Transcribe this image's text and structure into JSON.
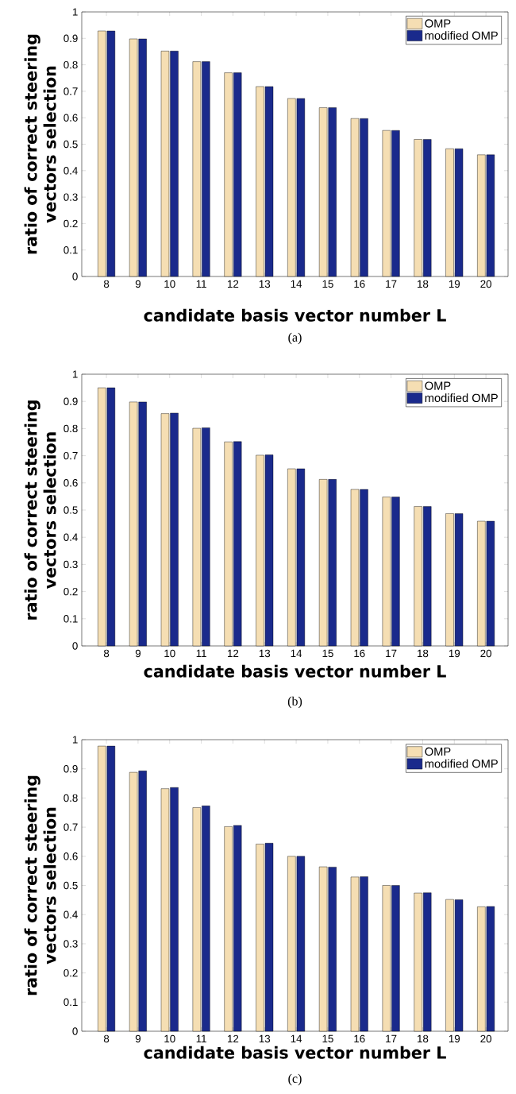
{
  "chart_data": [
    {
      "type": "bar",
      "categories": [
        "8",
        "9",
        "10",
        "11",
        "12",
        "13",
        "14",
        "15",
        "16",
        "17",
        "18",
        "19",
        "20"
      ],
      "series": [
        {
          "name": "OMP",
          "color": "#f5deb3",
          "values": [
            0.928,
            0.898,
            0.852,
            0.812,
            0.77,
            0.718,
            0.673,
            0.638,
            0.597,
            0.552,
            0.518,
            0.483,
            0.46
          ]
        },
        {
          "name": "modified OMP",
          "color": "#1a2a8c",
          "values": [
            0.928,
            0.898,
            0.852,
            0.812,
            0.77,
            0.718,
            0.673,
            0.638,
            0.597,
            0.552,
            0.518,
            0.483,
            0.46
          ]
        }
      ],
      "xlabel": "candidate basis vector number L",
      "ylabel": "ratio of correct steering vectors selection",
      "ylim": [
        0,
        1
      ],
      "yticks": [
        0,
        0.1,
        0.2,
        0.3,
        0.4,
        0.5,
        0.6,
        0.7,
        0.8,
        0.9,
        1
      ],
      "legend": "top right",
      "annotations": [
        "(a)"
      ]
    },
    {
      "type": "bar",
      "categories": [
        "8",
        "9",
        "10",
        "11",
        "12",
        "13",
        "14",
        "15",
        "16",
        "17",
        "18",
        "19",
        "20"
      ],
      "series": [
        {
          "name": "OMP",
          "color": "#f5deb3",
          "values": [
            0.95,
            0.898,
            0.855,
            0.801,
            0.751,
            0.702,
            0.652,
            0.613,
            0.576,
            0.548,
            0.513,
            0.487,
            0.459
          ]
        },
        {
          "name": "modified OMP",
          "color": "#1a2a8c",
          "values": [
            0.95,
            0.898,
            0.857,
            0.803,
            0.752,
            0.703,
            0.652,
            0.613,
            0.576,
            0.548,
            0.513,
            0.487,
            0.459
          ]
        }
      ],
      "xlabel": "candidate basis vector number L",
      "ylabel": "ratio of correct steering vectors selection",
      "ylim": [
        0,
        1
      ],
      "yticks": [
        0,
        0.1,
        0.2,
        0.3,
        0.4,
        0.5,
        0.6,
        0.7,
        0.8,
        0.9,
        1
      ],
      "legend": "top right",
      "annotations": [
        "(b)"
      ]
    },
    {
      "type": "bar",
      "categories": [
        "8",
        "9",
        "10",
        "11",
        "12",
        "13",
        "14",
        "15",
        "16",
        "17",
        "18",
        "19",
        "20"
      ],
      "series": [
        {
          "name": "OMP",
          "color": "#f5deb3",
          "values": [
            0.978,
            0.888,
            0.832,
            0.767,
            0.702,
            0.642,
            0.6,
            0.564,
            0.529,
            0.5,
            0.474,
            0.452,
            0.427
          ]
        },
        {
          "name": "modified OMP",
          "color": "#1a2a8c",
          "values": [
            0.978,
            0.893,
            0.836,
            0.773,
            0.706,
            0.645,
            0.6,
            0.563,
            0.53,
            0.5,
            0.475,
            0.451,
            0.428
          ]
        }
      ],
      "xlabel": "candidate basis vector number L",
      "ylabel": "ratio of correct steering vectors selection",
      "ylim": [
        0,
        1
      ],
      "yticks": [
        0,
        0.1,
        0.2,
        0.3,
        0.4,
        0.5,
        0.6,
        0.7,
        0.8,
        0.9,
        1
      ],
      "legend": "top right",
      "annotations": [
        "(c)"
      ]
    }
  ]
}
